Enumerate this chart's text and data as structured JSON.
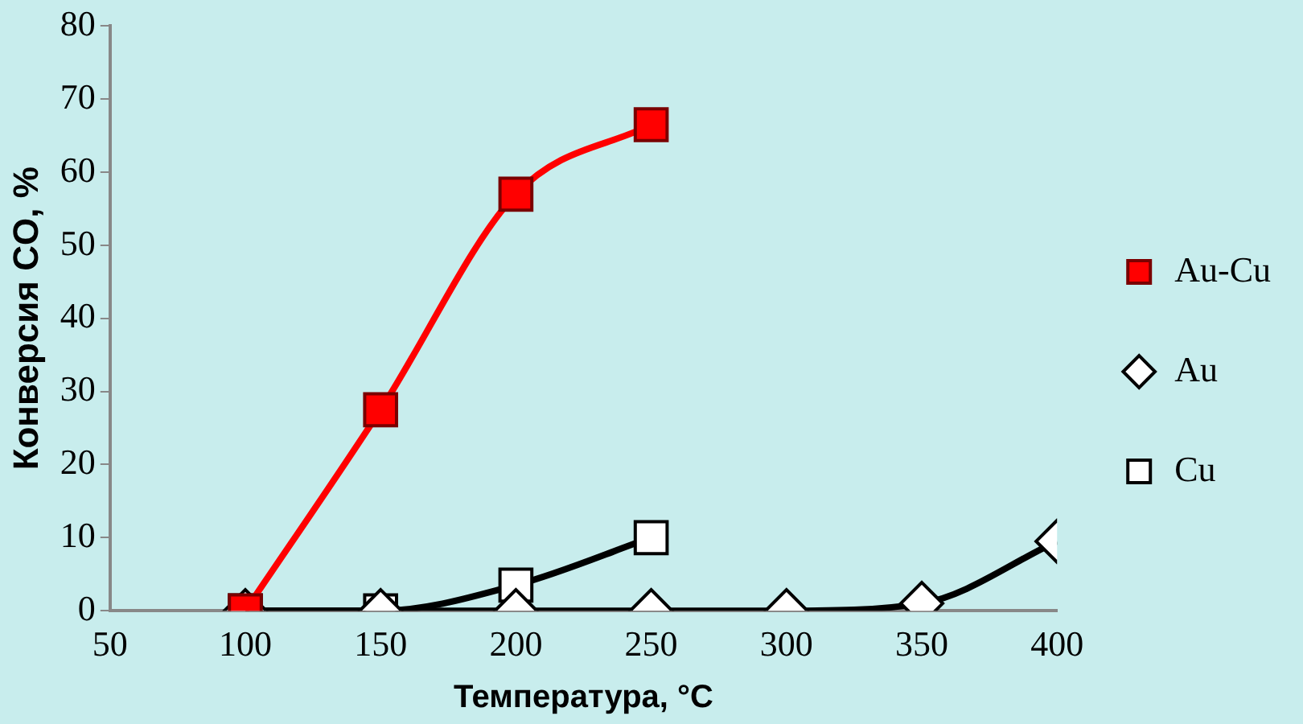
{
  "chart_data": {
    "type": "line",
    "xlabel": "Температура, °C",
    "ylabel": "Конверсия CO, %",
    "xlim": [
      50,
      400
    ],
    "xticks": [
      50,
      100,
      150,
      200,
      250,
      300,
      350,
      400
    ],
    "ylim": [
      0,
      80
    ],
    "yticks": [
      0,
      10,
      20,
      30,
      40,
      50,
      60,
      70,
      80
    ],
    "grid": false,
    "legend": "right",
    "series": [
      {
        "name": "Au-Cu",
        "color": "#ff0000",
        "marker": "square",
        "x": [
          100,
          150,
          200,
          250
        ],
        "values": [
          0,
          27.5,
          57,
          66.5
        ]
      },
      {
        "name": "Au",
        "color": "#000000",
        "marker": "diamond",
        "x": [
          100,
          150,
          200,
          250,
          300,
          350,
          400
        ],
        "values": [
          0,
          0,
          0,
          0,
          0,
          1,
          9.5
        ]
      },
      {
        "name": "Cu",
        "color": "#000000",
        "marker": "square",
        "x": [
          100,
          150,
          200,
          250
        ],
        "values": [
          0,
          0,
          3.5,
          10
        ]
      }
    ]
  }
}
